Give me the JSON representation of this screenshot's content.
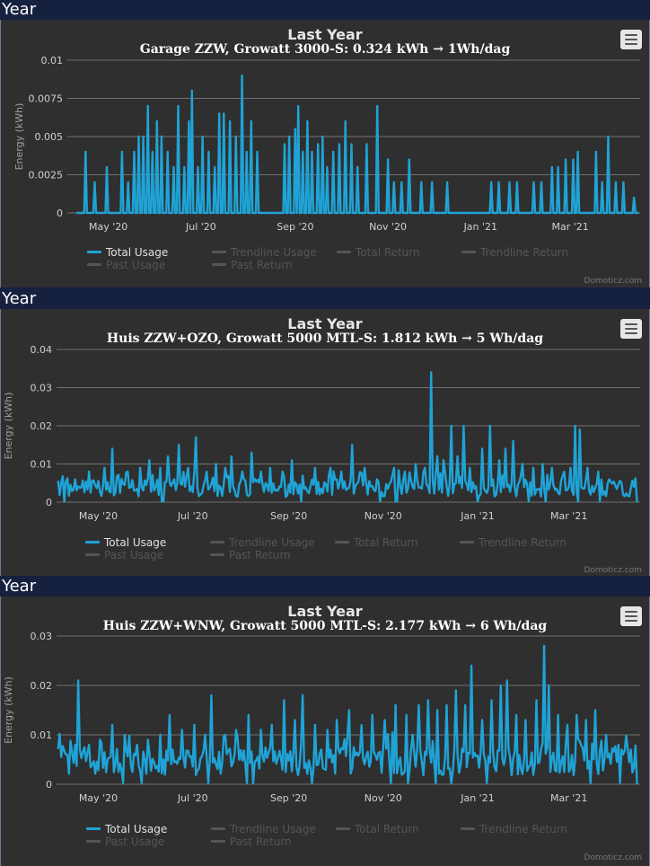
{
  "panels": [
    {
      "header": "Year",
      "title": "Last Year",
      "subtitle": "Garage ZZW, Growatt 3000-S: 0.324 kWh → 1Wh/dag",
      "credit": "Domoticz.com",
      "legend": [
        "Total Usage",
        "Trendline Usage",
        "Total Return",
        "Trendline Return",
        "Past Usage",
        "Past Return"
      ],
      "ylabel": "Energy (kWh)",
      "ytick_labels": [
        "0",
        "0.0025",
        "0.005",
        "0.0075",
        "0.01"
      ],
      "xtick_labels": [
        "May '20",
        "Jul '20",
        "Sep '20",
        "Nov '20",
        "Jan '21",
        "Mar '21"
      ]
    },
    {
      "header": "Year",
      "title": "Last Year",
      "subtitle": "Huis ZZW+OZO, Growatt 5000 MTL-S: 1.812 kWh → 5 Wh/dag",
      "credit": "Domoticz.com",
      "legend": [
        "Total Usage",
        "Trendline Usage",
        "Total Return",
        "Trendline Return",
        "Past Usage",
        "Past Return"
      ],
      "ylabel": "Energy (kWh)",
      "ytick_labels": [
        "0",
        "0.01",
        "0.02",
        "0.03",
        "0.04"
      ],
      "xtick_labels": [
        "May '20",
        "Jul '20",
        "Sep '20",
        "Nov '20",
        "Jan '21",
        "Mar '21"
      ]
    },
    {
      "header": "Year",
      "title": "Last Year",
      "subtitle": "Huis ZZW+WNW, Growatt 5000 MTL-S: 2.177 kWh → 6 Wh/dag",
      "credit": "Domoticz.com",
      "legend": [
        "Total Usage",
        "Trendline Usage",
        "Total Return",
        "Trendline Return",
        "Past Usage",
        "Past Return"
      ],
      "ylabel": "Energy (kWh)",
      "ytick_labels": [
        "0",
        "0.01",
        "0.02",
        "0.03"
      ],
      "xtick_labels": [
        "May '20",
        "Jul '20",
        "Sep '20",
        "Nov '20",
        "Jan '21",
        "Mar '21"
      ]
    }
  ],
  "colors": {
    "series": "#1fa3d6",
    "grid": "#707070",
    "background": "#2f2f2f",
    "header_bg": "#16203f"
  },
  "chart_data": [
    {
      "type": "line",
      "title": "Last Year",
      "subtitle": "Garage ZZW, Growatt 3000-S: 0.324 kWh → 1Wh/dag",
      "ylabel": "Energy (kWh)",
      "ylim": [
        0,
        0.01
      ],
      "yticks": [
        0,
        0.0025,
        0.005,
        0.0075,
        0.01
      ],
      "xlim": [
        "2020-04-04",
        "2021-04-16"
      ],
      "x_ticks": [
        "2020-05-01",
        "2020-07-01",
        "2020-09-01",
        "2020-11-01",
        "2021-01-01",
        "2021-03-01"
      ],
      "grid": true,
      "legend_position": "bottom",
      "series": [
        {
          "name": "Total Usage",
          "peaks": [
            [
              "2020-04-16",
              0.004
            ],
            [
              "2020-04-22",
              0.002
            ],
            [
              "2020-04-30",
              0.003
            ],
            [
              "2020-05-10",
              0.004
            ],
            [
              "2020-05-14",
              0.002
            ],
            [
              "2020-05-18",
              0.004
            ],
            [
              "2020-05-21",
              0.005
            ],
            [
              "2020-05-24",
              0.005
            ],
            [
              "2020-05-27",
              0.007
            ],
            [
              "2020-05-30",
              0.004
            ],
            [
              "2020-06-02",
              0.006
            ],
            [
              "2020-06-05",
              0.005
            ],
            [
              "2020-06-09",
              0.004
            ],
            [
              "2020-06-13",
              0.003
            ],
            [
              "2020-06-16",
              0.007
            ],
            [
              "2020-06-20",
              0.003
            ],
            [
              "2020-06-23",
              0.006
            ],
            [
              "2020-06-25",
              0.008
            ],
            [
              "2020-06-29",
              0.003
            ],
            [
              "2020-07-02",
              0.005
            ],
            [
              "2020-07-06",
              0.004
            ],
            [
              "2020-07-10",
              0.003
            ],
            [
              "2020-07-13",
              0.0065
            ],
            [
              "2020-07-16",
              0.0065
            ],
            [
              "2020-07-20",
              0.006
            ],
            [
              "2020-07-24",
              0.005
            ],
            [
              "2020-07-28",
              0.009
            ],
            [
              "2020-07-31",
              0.004
            ],
            [
              "2020-08-03",
              0.006
            ],
            [
              "2020-08-07",
              0.004
            ],
            [
              "2020-08-25",
              0.0045
            ],
            [
              "2020-08-28",
              0.005
            ],
            [
              "2020-09-01",
              0.0055
            ],
            [
              "2020-09-03",
              0.007
            ],
            [
              "2020-09-06",
              0.004
            ],
            [
              "2020-09-09",
              0.006
            ],
            [
              "2020-09-12",
              0.004
            ],
            [
              "2020-09-16",
              0.0045
            ],
            [
              "2020-09-19",
              0.005
            ],
            [
              "2020-09-22",
              0.003
            ],
            [
              "2020-09-26",
              0.004
            ],
            [
              "2020-09-30",
              0.0045
            ],
            [
              "2020-10-04",
              0.006
            ],
            [
              "2020-10-08",
              0.0045
            ],
            [
              "2020-10-12",
              0.003
            ],
            [
              "2020-10-18",
              0.0045
            ],
            [
              "2020-10-25",
              0.007
            ],
            [
              "2020-11-01",
              0.0035
            ],
            [
              "2020-11-05",
              0.002
            ],
            [
              "2020-11-10",
              0.002
            ],
            [
              "2020-11-15",
              0.0035
            ],
            [
              "2020-11-23",
              0.002
            ],
            [
              "2020-11-30",
              0.002
            ],
            [
              "2020-12-10",
              0.002
            ],
            [
              "2021-01-08",
              0.002
            ],
            [
              "2021-01-13",
              0.002
            ],
            [
              "2021-01-20",
              0.002
            ],
            [
              "2021-01-25",
              0.002
            ],
            [
              "2021-02-05",
              0.002
            ],
            [
              "2021-02-10",
              0.002
            ],
            [
              "2021-02-17",
              0.003
            ],
            [
              "2021-02-21",
              0.003
            ],
            [
              "2021-02-26",
              0.0035
            ],
            [
              "2021-03-03",
              0.0035
            ],
            [
              "2021-03-06",
              0.004
            ],
            [
              "2021-03-18",
              0.004
            ],
            [
              "2021-03-22",
              0.002
            ],
            [
              "2021-03-26",
              0.005
            ],
            [
              "2021-03-31",
              0.002
            ],
            [
              "2021-04-05",
              0.002
            ],
            [
              "2021-04-12",
              0.001
            ]
          ]
        }
      ]
    },
    {
      "type": "line",
      "title": "Last Year",
      "subtitle": "Huis ZZW+OZO, Growatt 5000 MTL-S: 1.812 kWh → 5 Wh/dag",
      "ylabel": "Energy (kWh)",
      "ylim": [
        0,
        0.04
      ],
      "yticks": [
        0,
        0.01,
        0.02,
        0.03,
        0.04
      ],
      "xlim": [
        "2020-04-04",
        "2021-04-16"
      ],
      "x_ticks": [
        "2020-05-01",
        "2020-07-01",
        "2020-09-01",
        "2020-11-01",
        "2021-01-01",
        "2021-03-01"
      ],
      "grid": true,
      "legend_position": "bottom",
      "series": [
        {
          "name": "Total Usage",
          "baseline": 0.004,
          "peaks": [
            [
              "2020-04-04",
              0.007
            ],
            [
              "2020-04-16",
              0.006
            ],
            [
              "2020-04-25",
              0.008
            ],
            [
              "2020-05-05",
              0.009
            ],
            [
              "2020-05-10",
              0.014
            ],
            [
              "2020-05-20",
              0.008
            ],
            [
              "2020-05-28",
              0.009
            ],
            [
              "2020-06-03",
              0.011
            ],
            [
              "2020-06-10",
              0.009
            ],
            [
              "2020-06-15",
              0.012
            ],
            [
              "2020-06-22",
              0.015
            ],
            [
              "2020-06-28",
              0.009
            ],
            [
              "2020-07-03",
              0.017
            ],
            [
              "2020-07-10",
              0.008
            ],
            [
              "2020-07-16",
              0.01
            ],
            [
              "2020-07-22",
              0.009
            ],
            [
              "2020-07-26",
              0.012
            ],
            [
              "2020-08-02",
              0.008
            ],
            [
              "2020-08-08",
              0.013
            ],
            [
              "2020-08-14",
              0.008
            ],
            [
              "2020-08-20",
              0.009
            ],
            [
              "2020-08-28",
              0.008
            ],
            [
              "2020-09-03",
              0.011
            ],
            [
              "2020-09-10",
              0.007
            ],
            [
              "2020-09-18",
              0.009
            ],
            [
              "2020-09-28",
              0.009
            ],
            [
              "2020-10-05",
              0.008
            ],
            [
              "2020-10-12",
              0.015
            ],
            [
              "2020-10-20",
              0.009
            ],
            [
              "2020-10-28",
              0.006
            ],
            [
              "2020-11-08",
              0.009
            ],
            [
              "2020-11-15",
              0.008
            ],
            [
              "2020-11-22",
              0.01
            ],
            [
              "2020-11-28",
              0.009
            ],
            [
              "2020-12-02",
              0.034
            ],
            [
              "2020-12-06",
              0.012
            ],
            [
              "2020-12-10",
              0.011
            ],
            [
              "2020-12-15",
              0.02
            ],
            [
              "2020-12-19",
              0.012
            ],
            [
              "2020-12-23",
              0.02
            ],
            [
              "2020-12-27",
              0.009
            ],
            [
              "2021-01-04",
              0.014
            ],
            [
              "2021-01-09",
              0.02
            ],
            [
              "2021-01-15",
              0.011
            ],
            [
              "2021-01-19",
              0.014
            ],
            [
              "2021-01-24",
              0.016
            ],
            [
              "2021-01-30",
              0.01
            ],
            [
              "2021-02-06",
              0.009
            ],
            [
              "2021-02-12",
              0.01
            ],
            [
              "2021-02-18",
              0.009
            ],
            [
              "2021-02-25",
              0.007
            ],
            [
              "2021-03-02",
              0.009
            ],
            [
              "2021-03-05",
              0.02
            ],
            [
              "2021-03-08",
              0.019
            ],
            [
              "2021-03-13",
              0.009
            ],
            [
              "2021-03-20",
              0.008
            ],
            [
              "2021-03-27",
              0.006
            ],
            [
              "2021-04-04",
              0.005
            ],
            [
              "2021-04-12",
              0.004
            ]
          ]
        }
      ]
    },
    {
      "type": "line",
      "title": "Last Year",
      "subtitle": "Huis ZZW+WNW, Growatt 5000 MTL-S: 2.177 kWh → 6 Wh/dag",
      "ylabel": "Energy (kWh)",
      "ylim": [
        0,
        0.03
      ],
      "yticks": [
        0,
        0.01,
        0.02,
        0.03
      ],
      "xlim": [
        "2020-04-04",
        "2021-04-16"
      ],
      "x_ticks": [
        "2020-05-01",
        "2020-07-01",
        "2020-09-01",
        "2020-11-01",
        "2021-01-01",
        "2021-03-01"
      ],
      "grid": true,
      "legend_position": "bottom",
      "series": [
        {
          "name": "Total Usage",
          "baseline": 0.005,
          "peaks": [
            [
              "2020-04-04",
              0.007
            ],
            [
              "2020-04-10",
              0.006
            ],
            [
              "2020-04-16",
              0.008
            ],
            [
              "2020-04-18",
              0.021
            ],
            [
              "2020-04-25",
              0.008
            ],
            [
              "2020-05-02",
              0.009
            ],
            [
              "2020-05-10",
              0.012
            ],
            [
              "2020-05-18",
              0.01
            ],
            [
              "2020-05-26",
              0.008
            ],
            [
              "2020-06-02",
              0.009
            ],
            [
              "2020-06-10",
              0.01
            ],
            [
              "2020-06-16",
              0.014
            ],
            [
              "2020-06-24",
              0.011
            ],
            [
              "2020-07-02",
              0.012
            ],
            [
              "2020-07-09",
              0.01
            ],
            [
              "2020-07-13",
              0.018
            ],
            [
              "2020-07-22",
              0.01
            ],
            [
              "2020-07-29",
              0.011
            ],
            [
              "2020-08-06",
              0.014
            ],
            [
              "2020-08-14",
              0.011
            ],
            [
              "2020-08-21",
              0.012
            ],
            [
              "2020-08-29",
              0.017
            ],
            [
              "2020-09-05",
              0.013
            ],
            [
              "2020-09-10",
              0.018
            ],
            [
              "2020-09-18",
              0.012
            ],
            [
              "2020-09-26",
              0.011
            ],
            [
              "2020-10-02",
              0.013
            ],
            [
              "2020-10-10",
              0.015
            ],
            [
              "2020-10-18",
              0.012
            ],
            [
              "2020-10-25",
              0.014
            ],
            [
              "2020-11-02",
              0.013
            ],
            [
              "2020-11-09",
              0.016
            ],
            [
              "2020-11-16",
              0.014
            ],
            [
              "2020-11-24",
              0.016
            ],
            [
              "2020-11-30",
              0.017
            ],
            [
              "2020-12-06",
              0.015
            ],
            [
              "2020-12-12",
              0.016
            ],
            [
              "2020-12-18",
              0.019
            ],
            [
              "2020-12-24",
              0.016
            ],
            [
              "2020-12-28",
              0.024
            ],
            [
              "2021-01-04",
              0.013
            ],
            [
              "2021-01-10",
              0.017
            ],
            [
              "2021-01-16",
              0.02
            ],
            [
              "2021-01-20",
              0.021
            ],
            [
              "2021-01-26",
              0.014
            ],
            [
              "2021-02-01",
              0.013
            ],
            [
              "2021-02-08",
              0.017
            ],
            [
              "2021-02-13",
              0.028
            ],
            [
              "2021-02-16",
              0.02
            ],
            [
              "2021-02-22",
              0.014
            ],
            [
              "2021-02-28",
              0.012
            ],
            [
              "2021-03-06",
              0.014
            ],
            [
              "2021-03-12",
              0.013
            ],
            [
              "2021-03-18",
              0.015
            ],
            [
              "2021-03-25",
              0.01
            ],
            [
              "2021-04-02",
              0.008
            ],
            [
              "2021-04-10",
              0.007
            ],
            [
              "2021-04-14",
              0.007
            ]
          ]
        }
      ]
    }
  ]
}
